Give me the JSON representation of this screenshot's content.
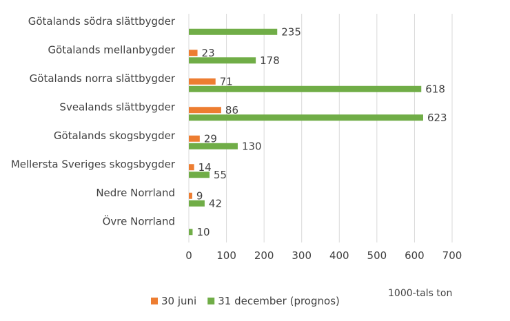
{
  "chart_data": {
    "type": "bar",
    "orientation": "horizontal",
    "categories": [
      "Götalands södra slättbygder",
      "Götalands mellanbygder",
      "Götalands norra slättbygder",
      "Svealands slättbygder",
      "Götalands skogsbygder",
      "Mellersta Sveriges skogsbygder",
      "Nedre Norrland",
      "Övre Norrland"
    ],
    "series": [
      {
        "name": "30 juni",
        "color": "#ED7D31",
        "values": [
          null,
          23,
          71,
          86,
          29,
          14,
          9,
          null
        ]
      },
      {
        "name": "31 december (prognos)",
        "color": "#70AD47",
        "values": [
          235,
          178,
          618,
          623,
          130,
          55,
          42,
          10
        ]
      }
    ],
    "xlim": [
      0,
      700
    ],
    "xticks": [
      0,
      100,
      200,
      300,
      400,
      500,
      600,
      700
    ],
    "grid": "vertical",
    "legend_position": "bottom",
    "unit_label": "1000-tals ton",
    "title": "",
    "xlabel": "",
    "ylabel": ""
  }
}
